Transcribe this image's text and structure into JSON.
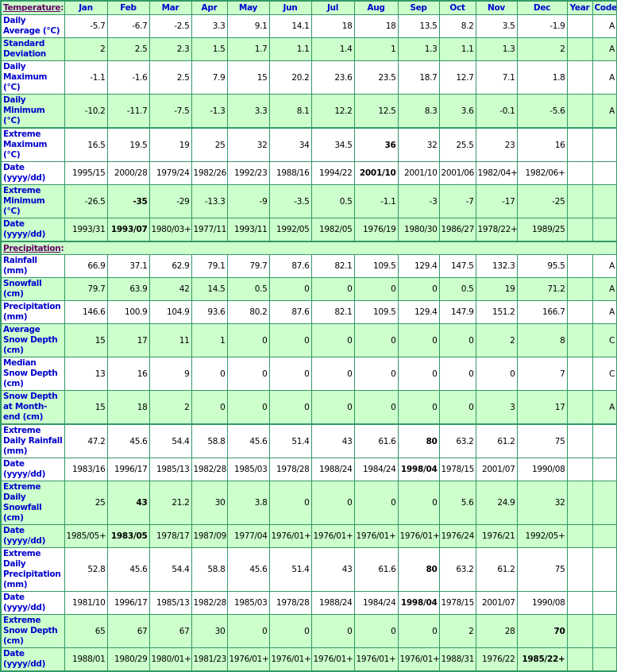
{
  "columns": [
    "Jan",
    "Feb",
    "Mar",
    "Apr",
    "May",
    "Jun",
    "Jul",
    "Aug",
    "Sep",
    "Oct",
    "Nov",
    "Dec",
    "Year",
    "Code"
  ],
  "sections": [
    {
      "title": "Temperature",
      "rows": [
        {
          "label": "Daily Average (°C)",
          "values": [
            "-5.7",
            "-6.7",
            "-2.5",
            "3.3",
            "9.1",
            "14.1",
            "18",
            "18",
            "13.5",
            "8.2",
            "3.5",
            "-1.9",
            ""
          ],
          "code": "A",
          "bold": null
        },
        {
          "label": "Standard Deviation",
          "values": [
            "2",
            "2.5",
            "2.3",
            "1.5",
            "1.7",
            "1.1",
            "1.4",
            "1",
            "1.3",
            "1.1",
            "1.3",
            "2",
            ""
          ],
          "code": "A",
          "bold": null
        },
        {
          "label": "Daily Maximum (°C)",
          "values": [
            "-1.1",
            "-1.6",
            "2.5",
            "7.9",
            "15",
            "20.2",
            "23.6",
            "23.5",
            "18.7",
            "12.7",
            "7.1",
            "1.8",
            ""
          ],
          "code": "A",
          "bold": null
        },
        {
          "label": "Daily Minimum (°C)",
          "values": [
            "-10.2",
            "-11.7",
            "-7.5",
            "-1.3",
            "3.3",
            "8.1",
            "12.2",
            "12.5",
            "8.3",
            "3.6",
            "-0.1",
            "-5.6",
            ""
          ],
          "code": "A",
          "bold": null
        },
        {
          "label": "Extreme Maximum (°C)",
          "values": [
            "16.5",
            "19.5",
            "19",
            "25",
            "32",
            "34",
            "34.5",
            "36",
            "32",
            "25.5",
            "23",
            "16",
            ""
          ],
          "code": "",
          "bold": 7
        },
        {
          "label": "Date (yyyy/dd)",
          "values": [
            "1995/15",
            "2000/28",
            "1979/24",
            "1982/26",
            "1992/23",
            "1988/16",
            "1994/22",
            "2001/10",
            "2001/10",
            "2001/06",
            "1982/04+",
            "1982/06+",
            ""
          ],
          "code": "",
          "bold": 7
        },
        {
          "label": "Extreme Minimum (°C)",
          "values": [
            "-26.5",
            "-35",
            "-29",
            "-13.3",
            "-9",
            "-3.5",
            "0.5",
            "-1.1",
            "-3",
            "-7",
            "-17",
            "-25",
            ""
          ],
          "code": "",
          "bold": 1
        },
        {
          "label": "Date (yyyy/dd)",
          "values": [
            "1993/31",
            "1993/07",
            "1980/03+",
            "1977/11",
            "1993/11",
            "1992/05",
            "1982/05",
            "1976/19",
            "1980/30",
            "1986/27",
            "1978/22+",
            "1989/25",
            ""
          ],
          "code": "",
          "bold": 1
        }
      ]
    },
    {
      "title": "Precipitation",
      "rows": [
        {
          "label": "Rainfall (mm)",
          "values": [
            "66.9",
            "37.1",
            "62.9",
            "79.1",
            "79.7",
            "87.6",
            "82.1",
            "109.5",
            "129.4",
            "147.5",
            "132.3",
            "95.5",
            ""
          ],
          "code": "A",
          "bold": null
        },
        {
          "label": "Snowfall (cm)",
          "values": [
            "79.7",
            "63.9",
            "42",
            "14.5",
            "0.5",
            "0",
            "0",
            "0",
            "0",
            "0.5",
            "19",
            "71.2",
            ""
          ],
          "code": "A",
          "bold": null
        },
        {
          "label": "Precipitation (mm)",
          "values": [
            "146.6",
            "100.9",
            "104.9",
            "93.6",
            "80.2",
            "87.6",
            "82.1",
            "109.5",
            "129.4",
            "147.9",
            "151.2",
            "166.7",
            ""
          ],
          "code": "A",
          "bold": null
        },
        {
          "label": "Average Snow Depth (cm)",
          "values": [
            "15",
            "17",
            "11",
            "1",
            "0",
            "0",
            "0",
            "0",
            "0",
            "0",
            "2",
            "8",
            ""
          ],
          "code": "C",
          "bold": null
        },
        {
          "label": "Median Snow Depth (cm)",
          "values": [
            "13",
            "16",
            "9",
            "0",
            "0",
            "0",
            "0",
            "0",
            "0",
            "0",
            "0",
            "7",
            ""
          ],
          "code": "C",
          "bold": null
        },
        {
          "label": "Snow Depth at Month-end (cm)",
          "values": [
            "15",
            "18",
            "2",
            "0",
            "0",
            "0",
            "0",
            "0",
            "0",
            "0",
            "3",
            "17",
            ""
          ],
          "code": "A",
          "bold": null
        },
        {
          "label": "Extreme Daily Rainfall (mm)",
          "values": [
            "47.2",
            "45.6",
            "54.4",
            "58.8",
            "45.6",
            "51.4",
            "43",
            "61.6",
            "80",
            "63.2",
            "61.2",
            "75",
            ""
          ],
          "code": "",
          "bold": 8
        },
        {
          "label": "Date (yyyy/dd)",
          "values": [
            "1983/16",
            "1996/17",
            "1985/13",
            "1982/28",
            "1985/03",
            "1978/28",
            "1988/24",
            "1984/24",
            "1998/04",
            "1978/15",
            "2001/07",
            "1990/08",
            ""
          ],
          "code": "",
          "bold": 8
        },
        {
          "label": "Extreme Daily Snowfall (cm)",
          "values": [
            "25",
            "43",
            "21.2",
            "30",
            "3.8",
            "0",
            "0",
            "0",
            "0",
            "5.6",
            "24.9",
            "32",
            ""
          ],
          "code": "",
          "bold": 1
        },
        {
          "label": "Date (yyyy/dd)",
          "values": [
            "1985/05+",
            "1983/05",
            "1978/17",
            "1987/09",
            "1977/04",
            "1976/01+",
            "1976/01+",
            "1976/01+",
            "1976/01+",
            "1976/24",
            "1976/21",
            "1992/05+",
            ""
          ],
          "code": "",
          "bold": 1
        },
        {
          "label": "Extreme Daily Precipitation (mm)",
          "values": [
            "52.8",
            "45.6",
            "54.4",
            "58.8",
            "45.6",
            "51.4",
            "43",
            "61.6",
            "80",
            "63.2",
            "61.2",
            "75",
            ""
          ],
          "code": "",
          "bold": 8
        },
        {
          "label": "Date (yyyy/dd)",
          "values": [
            "1981/10",
            "1996/17",
            "1985/13",
            "1982/28",
            "1985/03",
            "1978/28",
            "1988/24",
            "1984/24",
            "1998/04",
            "1978/15",
            "2001/07",
            "1990/08",
            ""
          ],
          "code": "",
          "bold": 8
        },
        {
          "label": "Extreme Snow Depth (cm)",
          "values": [
            "65",
            "67",
            "67",
            "30",
            "0",
            "0",
            "0",
            "0",
            "0",
            "2",
            "28",
            "70",
            ""
          ],
          "code": "",
          "bold": 11
        },
        {
          "label": "Date (yyyy/dd)",
          "values": [
            "1988/01",
            "1980/29",
            "1980/01+",
            "1981/23",
            "1976/01+",
            "1976/01+",
            "1976/01+",
            "1976/01+",
            "1976/01+",
            "1988/31",
            "1976/22",
            "1985/22+",
            ""
          ],
          "code": "",
          "bold": 11
        }
      ]
    }
  ],
  "colors": {
    "border": "#339966",
    "header_bg": "#ccffcc",
    "label": "#0000cc",
    "section_title": "#660066"
  }
}
